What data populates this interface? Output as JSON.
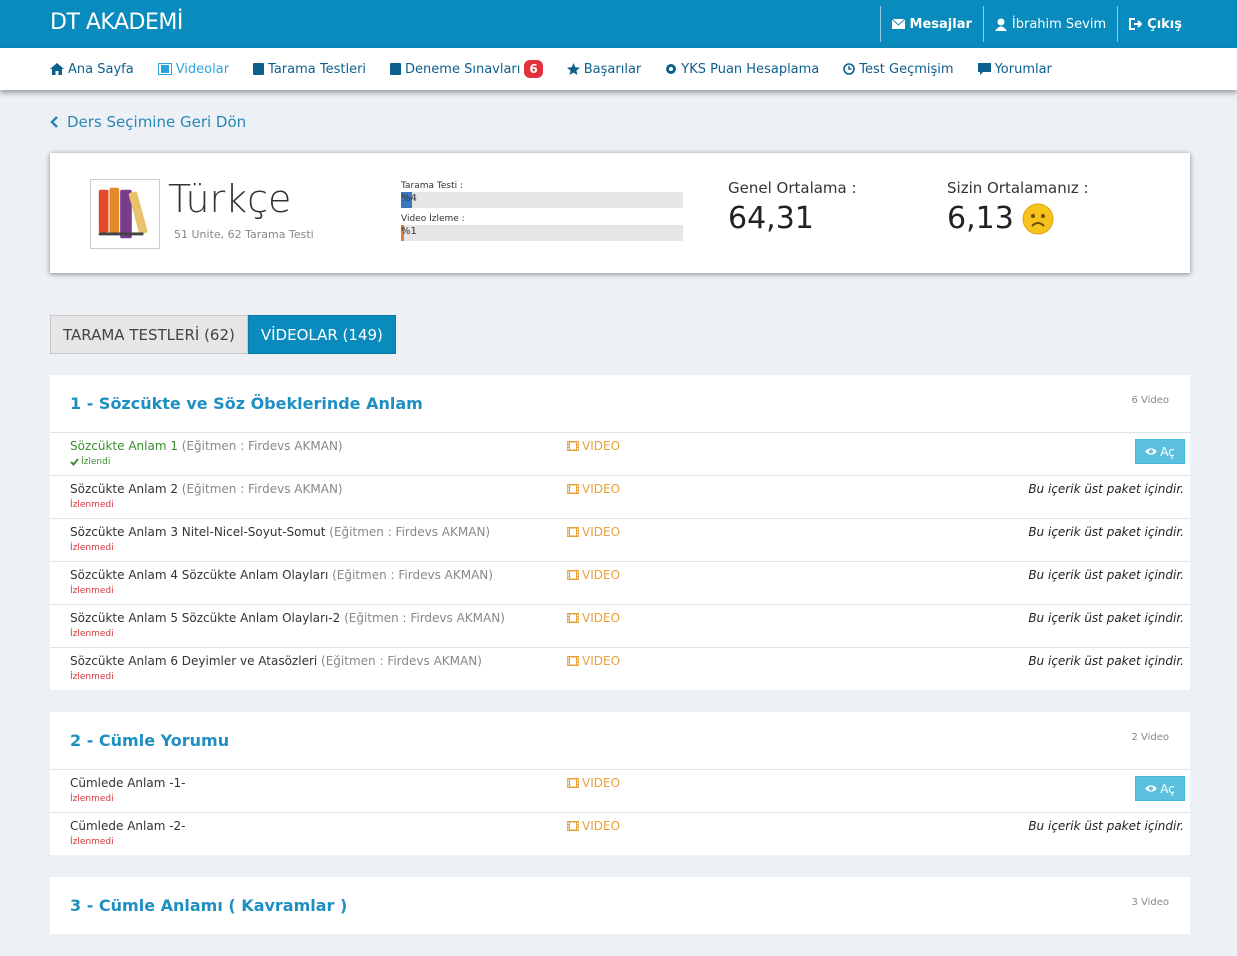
{
  "header": {
    "brand": "DT AKADEMİ",
    "links": [
      "Mesajlar",
      "İbrahim Sevim",
      "Çıkış"
    ]
  },
  "nav": {
    "items": [
      {
        "label": "Ana Sayfa"
      },
      {
        "label": "Videolar",
        "active": true
      },
      {
        "label": "Tarama Testleri"
      },
      {
        "label": "Deneme Sınavları",
        "badge": 6
      },
      {
        "label": "Başarılar"
      },
      {
        "label": "YKS Puan Hesaplama"
      },
      {
        "label": "Test Geçmişim"
      },
      {
        "label": "Yorumlar"
      }
    ]
  },
  "back_link": "Ders Seçimine Geri Dön",
  "course": {
    "title": "Türkçe",
    "subtitle": "51 Unite, 62 Tarama Testi",
    "progress": [
      {
        "label": "Tarama Testi :",
        "percent": {
          "value": 4,
          "label": "%4"
        },
        "color": "#3a78c2"
      },
      {
        "label": "Video İzleme :",
        "percent": {
          "value": 1,
          "label": "%1"
        },
        "color": "#e07a3a"
      }
    ],
    "stats": [
      {
        "label": "Genel Ortalama :",
        "value": "64,31"
      },
      {
        "label": "Sizin Ortalamanız :",
        "value": "6,13"
      }
    ]
  },
  "tabs": [
    {
      "label": "TARAMA TESTLERİ (62)"
    },
    {
      "label": "VİDEOLAR (149)",
      "active": true
    }
  ],
  "sections": [
    {
      "title": "1 - Sözcükte ve Söz Öbeklerinde Anlam",
      "count": "6 Video",
      "rows": [
        {
          "title": "Sözcükte Anlam 1",
          "instructor": "(Eğitmen : Firdevs AKMAN)",
          "status": "İzlendi",
          "watched": true,
          "type": "VIDEO",
          "action": "Aç"
        },
        {
          "title": "Sözcükte Anlam 2",
          "instructor": "(Eğitmen : Firdevs AKMAN)",
          "status": "İzlenmedi",
          "type": "VIDEO",
          "note": "Bu içerik üst paket içindir."
        },
        {
          "title": "Sözcükte Anlam 3 Nitel-Nicel-Soyut-Somut",
          "instructor": "(Eğitmen : Firdevs AKMAN)",
          "status": "İzlenmedi",
          "type": "VIDEO",
          "note": "Bu içerik üst paket içindir."
        },
        {
          "title": "Sözcükte Anlam 4 Sözcükte Anlam Olayları",
          "instructor": "(Eğitmen : Firdevs AKMAN)",
          "status": "İzlenmedi",
          "type": "VIDEO",
          "note": "Bu içerik üst paket içindir."
        },
        {
          "title": "Sözcükte Anlam 5 Sözcükte Anlam Olayları-2",
          "instructor": "(Eğitmen : Firdevs AKMAN)",
          "status": "İzlenmedi",
          "type": "VIDEO",
          "note": "Bu içerik üst paket içindir."
        },
        {
          "title": "Sözcükte Anlam 6 Deyimler ve Atasözleri",
          "instructor": "(Eğitmen : Firdevs AKMAN)",
          "status": "İzlenmedi",
          "type": "VIDEO",
          "note": "Bu içerik üst paket içindir."
        }
      ]
    },
    {
      "title": "2 - Cümle Yorumu",
      "count": "2 Video",
      "rows": [
        {
          "title": "Cümlede Anlam -1-",
          "status": "İzlenmedi",
          "type": "VIDEO",
          "action": "Aç"
        },
        {
          "title": "Cümlede Anlam -2-",
          "status": "İzlenmedi",
          "type": "VIDEO",
          "note": "Bu içerik üst paket içindir."
        }
      ]
    },
    {
      "title": "3 - Cümle Anlamı ( Kavramlar )",
      "count": "3 Video",
      "rows": []
    }
  ]
}
